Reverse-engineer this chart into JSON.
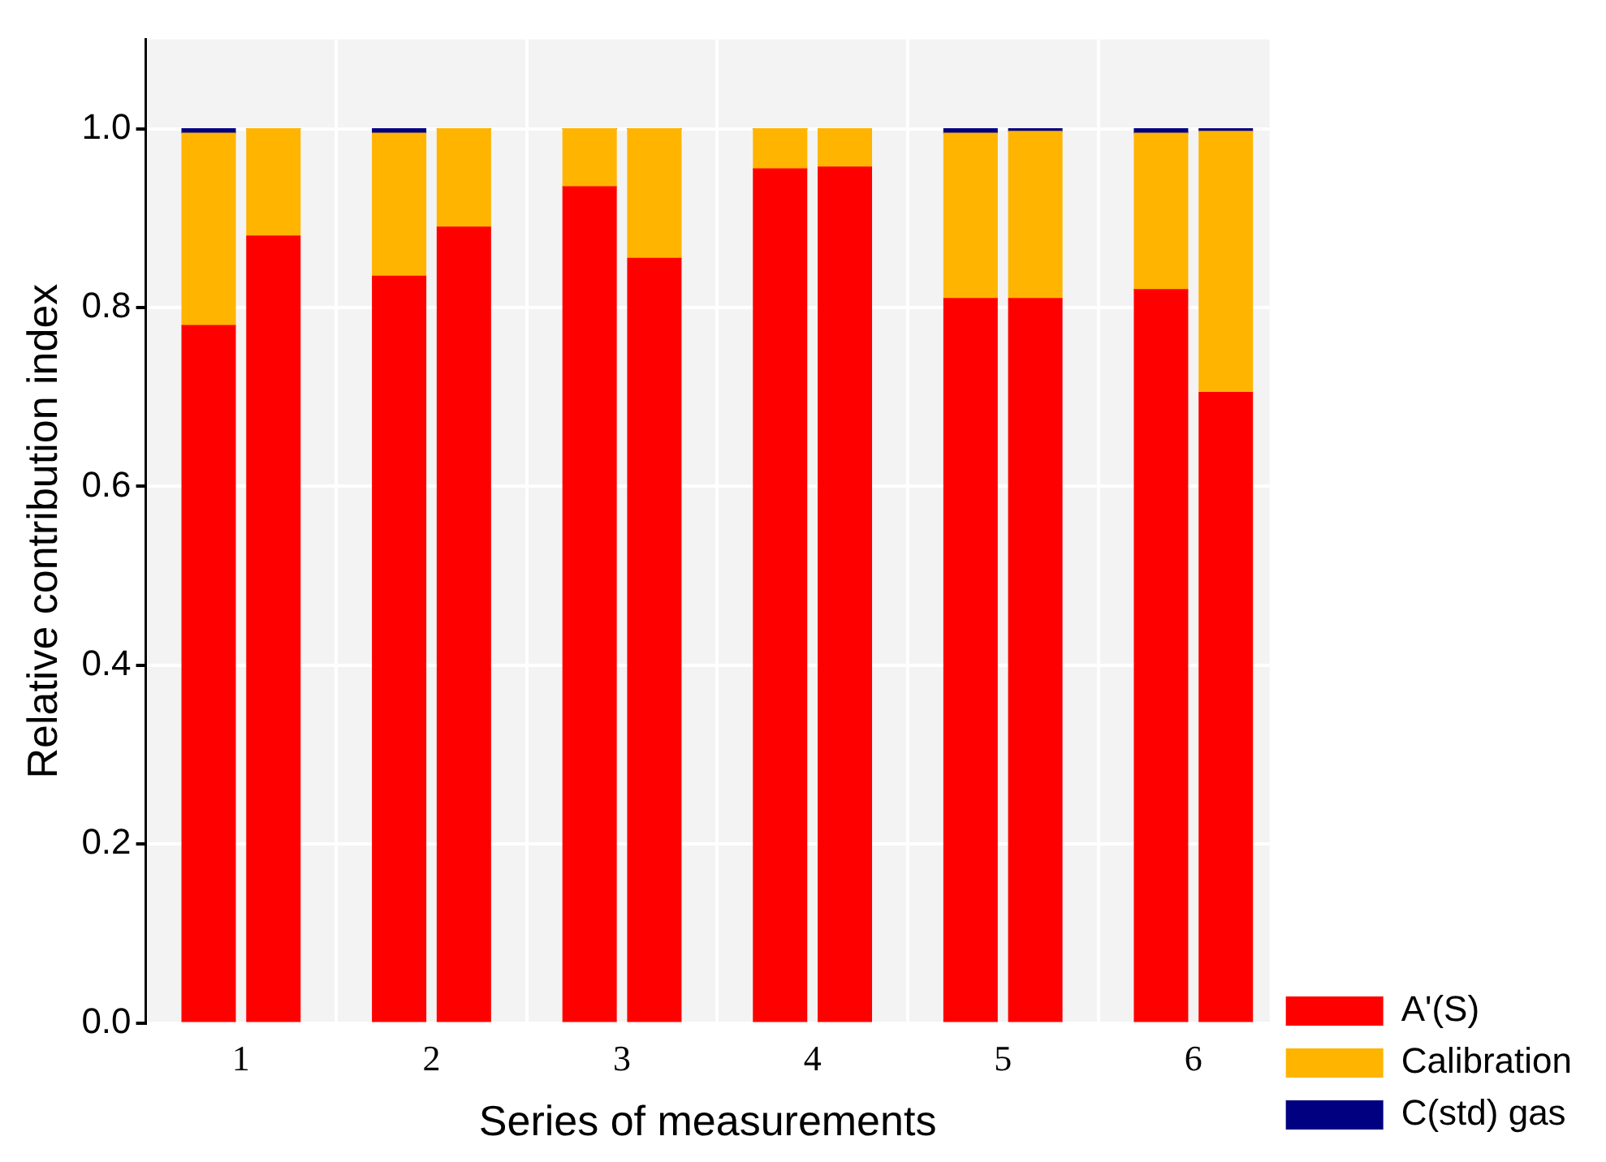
{
  "chart_data": {
    "type": "bar",
    "stacked": true,
    "xlabel": "Series of measurements",
    "ylabel": "Relative contribution index",
    "x": [
      0.83,
      1.17,
      1.83,
      2.17,
      2.83,
      3.17,
      3.83,
      4.17,
      4.83,
      5.17,
      5.83,
      6.17
    ],
    "series": [
      {
        "name": "A'(S)",
        "color": "#ff0000",
        "values": [
          0.78,
          0.88,
          0.835,
          0.89,
          0.935,
          0.855,
          0.955,
          0.957,
          0.81,
          0.81,
          0.82,
          0.705
        ]
      },
      {
        "name": "Calibration",
        "color": "#ffb400",
        "values": [
          0.215,
          0.12,
          0.16,
          0.11,
          0.065,
          0.145,
          0.045,
          0.043,
          0.185,
          0.187,
          0.175,
          0.292
        ]
      },
      {
        "name": "C(std) gas",
        "color": "#000080",
        "values": [
          0.005,
          0,
          0.005,
          0,
          0,
          0,
          0,
          0,
          0.005,
          0.003,
          0.005,
          0.003
        ]
      }
    ],
    "xlim": [
      0.5,
      6.4
    ],
    "xticks": [
      1,
      2,
      3,
      4,
      5,
      6
    ],
    "ylim": [
      0,
      1.1
    ],
    "yticks": [
      {
        "value": 0,
        "label": "0.0"
      },
      {
        "value": 0.2,
        "label": "0.2"
      },
      {
        "value": 0.4,
        "label": "0.4"
      },
      {
        "value": 0.6,
        "label": "0.6"
      },
      {
        "value": 0.8,
        "label": "0.8"
      },
      {
        "value": 1,
        "label": "1.0"
      }
    ],
    "grid": true,
    "legend": "bottom right"
  }
}
